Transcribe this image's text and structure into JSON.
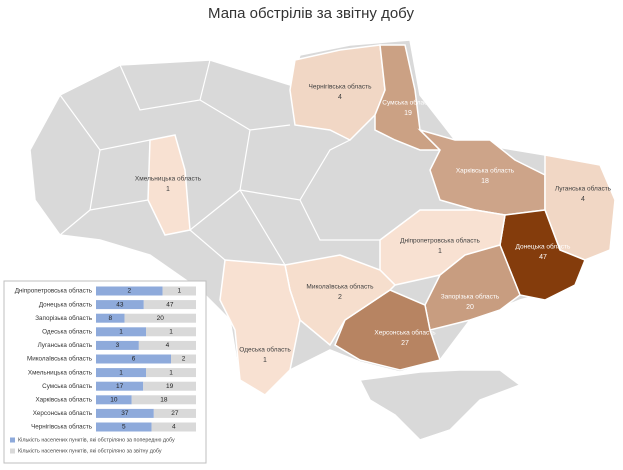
{
  "title": "Мапа обстрілів за звітну добу",
  "map": {
    "regions": [
      {
        "name": "Чернігівська область",
        "value": 4
      },
      {
        "name": "Сумська область",
        "value": 19
      },
      {
        "name": "Харківська область",
        "value": 18
      },
      {
        "name": "Луганська область",
        "value": 4
      },
      {
        "name": "Донецька область",
        "value": 47
      },
      {
        "name": "Дніпропетровська область",
        "value": 1
      },
      {
        "name": "Запорізька область",
        "value": 20
      },
      {
        "name": "Херсонська область",
        "value": 27
      },
      {
        "name": "Миколаївська область",
        "value": 2
      },
      {
        "name": "Одеська область",
        "value": 1
      },
      {
        "name": "Хмельницька область",
        "value": 1
      }
    ]
  },
  "chart_data": {
    "type": "bar",
    "orientation": "horizontal",
    "stacking": "percent",
    "categories": [
      "Дніпропетровська область",
      "Донецька область",
      "Запорізька область",
      "Одеська область",
      "Луганська область",
      "Миколаївська область",
      "Хмельницька область",
      "Сумська область",
      "Харківська область",
      "Херсонська область",
      "Чернігівська  область"
    ],
    "series": [
      {
        "name": "Кількість населених пунктів, які обстріляно за попередню добу",
        "color": "#8eaadb",
        "values": [
          2,
          43,
          8,
          1,
          3,
          6,
          1,
          17,
          10,
          37,
          5
        ]
      },
      {
        "name": "Кількість населених пунктів, які обстріляно за звітну добу",
        "color": "#d9d9d9",
        "values": [
          1,
          47,
          20,
          1,
          4,
          2,
          1,
          19,
          18,
          27,
          4
        ]
      }
    ],
    "legend": "bottom"
  }
}
